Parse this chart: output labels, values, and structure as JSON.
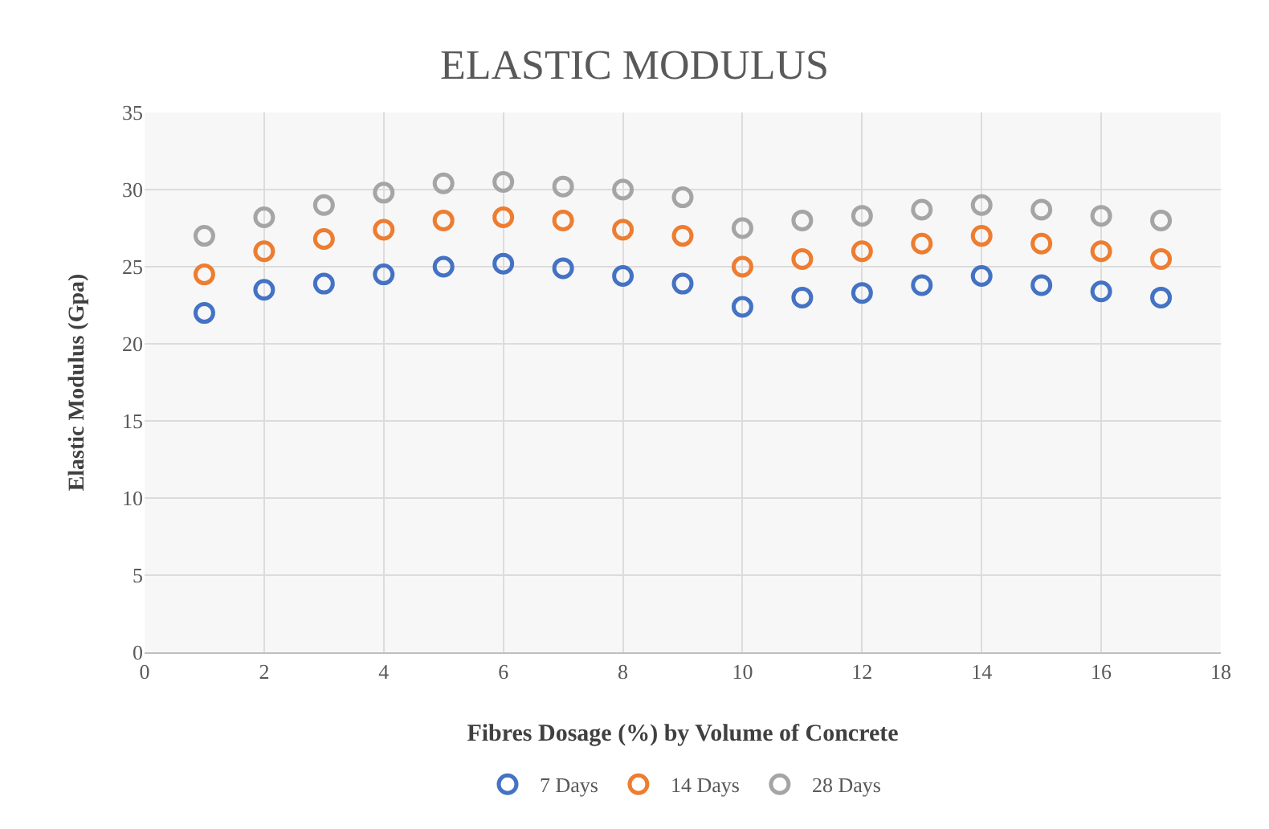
{
  "chart_data": {
    "type": "scatter",
    "title": "ELASTIC MODULUS",
    "xlabel": "Fibres Dosage (%) by Volume of Concrete",
    "ylabel": "Elastic Modulus (Gpa)",
    "x": [
      1,
      2,
      3,
      4,
      5,
      6,
      7,
      8,
      9,
      10,
      11,
      12,
      13,
      14,
      15,
      16,
      17
    ],
    "series": [
      {
        "name": "7 Days",
        "color": "#4472c4",
        "values": [
          22,
          23.5,
          23.9,
          24.5,
          25,
          25.2,
          24.9,
          24.4,
          23.9,
          22.4,
          23,
          23.3,
          23.8,
          24.4,
          23.8,
          23.4,
          23
        ]
      },
      {
        "name": "14 Days",
        "color": "#ed7d31",
        "values": [
          24.5,
          26,
          26.8,
          27.4,
          28,
          28.2,
          28,
          27.4,
          27,
          25,
          25.5,
          26,
          26.5,
          27,
          26.5,
          26,
          25.5
        ]
      },
      {
        "name": "28 Days",
        "color": "#a5a5a5",
        "values": [
          27,
          28.2,
          29,
          29.8,
          30.4,
          30.5,
          30.2,
          30,
          29.5,
          27.5,
          28,
          28.3,
          28.7,
          29,
          28.7,
          28.3,
          28
        ]
      }
    ],
    "xlim": [
      0,
      18
    ],
    "xticks": [
      0,
      2,
      4,
      6,
      8,
      10,
      12,
      14,
      16,
      18
    ],
    "ylim": [
      0,
      35
    ],
    "yticks": [
      0,
      5,
      10,
      15,
      20,
      25,
      30,
      35
    ],
    "grid": true,
    "legend": "bottom",
    "marker": "circle"
  }
}
